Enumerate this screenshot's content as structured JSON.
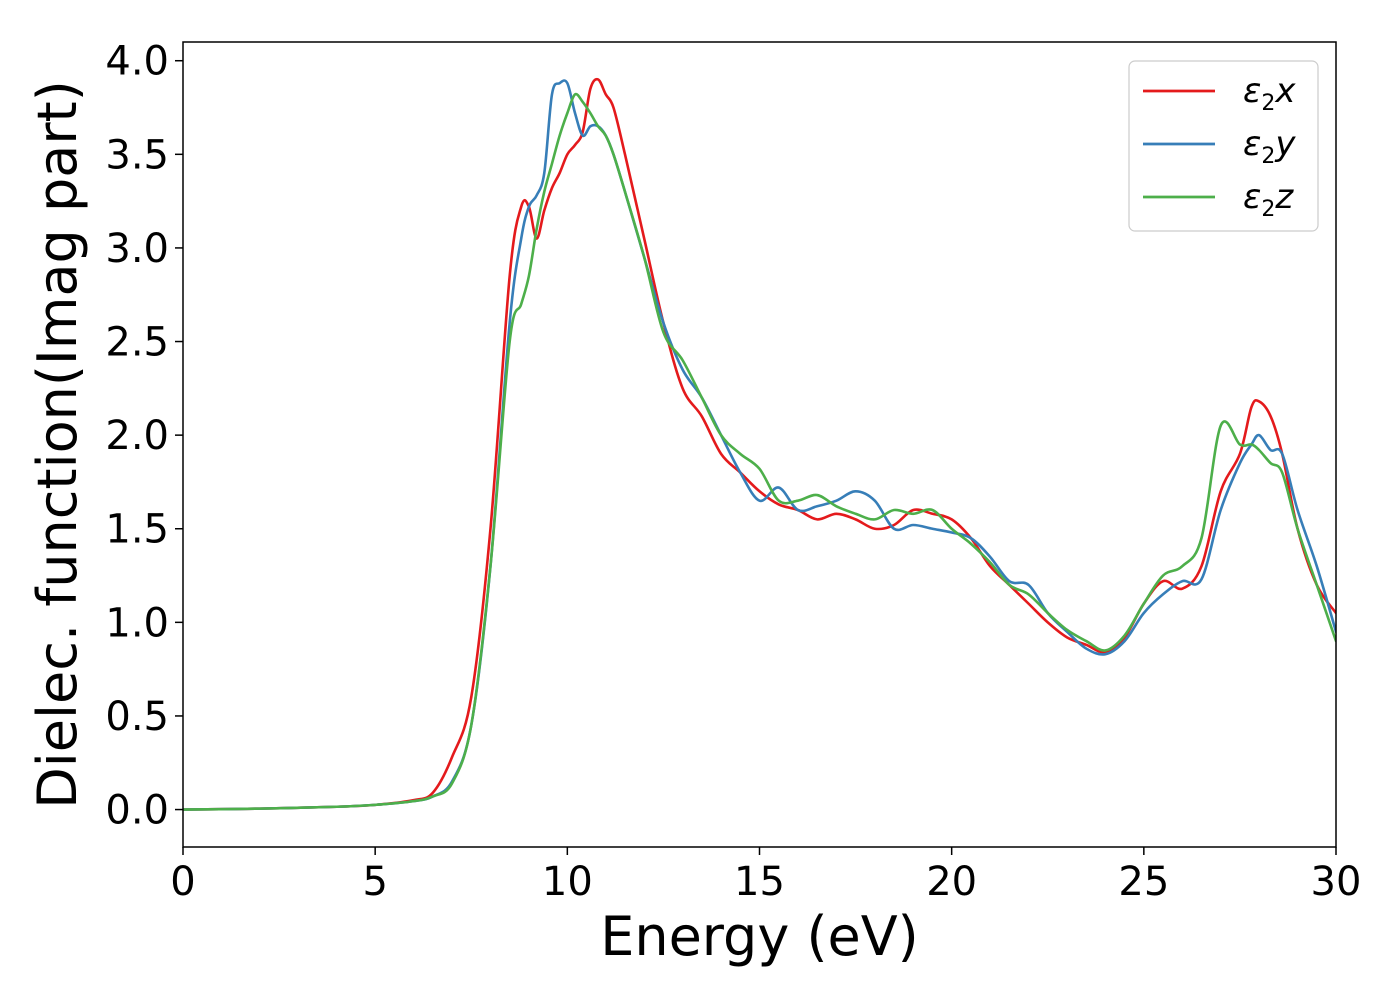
{
  "chart_data": {
    "type": "line",
    "title": "",
    "xlabel": "Energy (eV)",
    "ylabel": "Dielec. function(Imag part)",
    "xlim": [
      0,
      30
    ],
    "ylim": [
      -0.2,
      4.1
    ],
    "xticks": [
      "0",
      "5",
      "10",
      "15",
      "20",
      "25",
      "30"
    ],
    "yticks": [
      "0.0",
      "0.5",
      "1.0",
      "1.5",
      "2.0",
      "2.5",
      "3.0",
      "3.5",
      "4.0"
    ],
    "grid": false,
    "legend_position": "top-right",
    "series": [
      {
        "name": "ε2x",
        "symbol": "ε",
        "subscript": "2",
        "suffix": "x",
        "color": "#e41a1c",
        "x": [
          0,
          2,
          4,
          5,
          6,
          6.5,
          7,
          7.5,
          8,
          8.5,
          8.8,
          9,
          9.2,
          9.4,
          9.6,
          9.8,
          10,
          10.2,
          10.4,
          10.6,
          10.8,
          11,
          11.2,
          11.5,
          12,
          12.5,
          13,
          13.5,
          14,
          14.5,
          15,
          15.5,
          16,
          16.5,
          17,
          17.5,
          18,
          18.5,
          19,
          19.5,
          20,
          20.5,
          21,
          21.5,
          22,
          22.5,
          23,
          23.5,
          24,
          24.5,
          25,
          25.5,
          26,
          26.5,
          27,
          27.5,
          27.8,
          28,
          28.3,
          28.6,
          29,
          29.5,
          30
        ],
        "y": [
          0.0,
          0.005,
          0.015,
          0.025,
          0.05,
          0.09,
          0.28,
          0.6,
          1.5,
          2.85,
          3.22,
          3.22,
          3.05,
          3.2,
          3.32,
          3.4,
          3.5,
          3.55,
          3.62,
          3.85,
          3.9,
          3.82,
          3.75,
          3.5,
          3.05,
          2.6,
          2.25,
          2.1,
          1.9,
          1.8,
          1.7,
          1.63,
          1.6,
          1.55,
          1.58,
          1.55,
          1.5,
          1.52,
          1.6,
          1.58,
          1.55,
          1.45,
          1.3,
          1.2,
          1.1,
          1.0,
          0.92,
          0.88,
          0.84,
          0.92,
          1.1,
          1.22,
          1.18,
          1.3,
          1.7,
          1.9,
          2.15,
          2.18,
          2.1,
          1.9,
          1.5,
          1.2,
          1.05
        ]
      },
      {
        "name": "ε2y",
        "symbol": "ε",
        "subscript": "2",
        "suffix": "y",
        "color": "#377eb8",
        "x": [
          0,
          2,
          4,
          5,
          6,
          6.5,
          7,
          7.5,
          8,
          8.5,
          8.8,
          9,
          9.2,
          9.4,
          9.6,
          9.8,
          10,
          10.2,
          10.4,
          10.6,
          10.8,
          11,
          11.2,
          11.5,
          12,
          12.5,
          13,
          13.5,
          14,
          14.5,
          15,
          15.5,
          16,
          16.5,
          17,
          17.5,
          18,
          18.5,
          19,
          19.5,
          20,
          20.5,
          21,
          21.5,
          22,
          22.5,
          23,
          23.5,
          24,
          24.5,
          25,
          25.5,
          26,
          26.5,
          27,
          27.5,
          27.8,
          28,
          28.3,
          28.6,
          29,
          29.5,
          30
        ],
        "y": [
          0.0,
          0.005,
          0.015,
          0.025,
          0.045,
          0.07,
          0.15,
          0.45,
          1.3,
          2.6,
          3.05,
          3.22,
          3.28,
          3.4,
          3.82,
          3.88,
          3.88,
          3.72,
          3.6,
          3.65,
          3.65,
          3.6,
          3.5,
          3.3,
          2.95,
          2.6,
          2.35,
          2.2,
          2.0,
          1.8,
          1.65,
          1.72,
          1.6,
          1.62,
          1.65,
          1.7,
          1.65,
          1.5,
          1.52,
          1.5,
          1.48,
          1.45,
          1.35,
          1.22,
          1.2,
          1.05,
          0.95,
          0.86,
          0.83,
          0.9,
          1.05,
          1.15,
          1.22,
          1.23,
          1.6,
          1.85,
          1.95,
          2.0,
          1.92,
          1.9,
          1.6,
          1.3,
          0.95
        ]
      },
      {
        "name": "ε2z",
        "symbol": "ε",
        "subscript": "2",
        "suffix": "z",
        "color": "#4daf4a",
        "x": [
          0,
          2,
          4,
          5,
          6,
          6.5,
          7,
          7.5,
          8,
          8.5,
          8.8,
          9,
          9.2,
          9.4,
          9.6,
          9.8,
          10,
          10.2,
          10.4,
          10.6,
          10.8,
          11,
          11.2,
          11.5,
          12,
          12.5,
          13,
          13.5,
          14,
          14.5,
          15,
          15.5,
          16,
          16.5,
          17,
          17.5,
          18,
          18.5,
          19,
          19.5,
          20,
          20.5,
          21,
          21.5,
          22,
          22.5,
          23,
          23.5,
          24,
          24.5,
          25,
          25.5,
          26,
          26.5,
          27,
          27.5,
          27.8,
          28,
          28.3,
          28.6,
          29,
          29.5,
          30
        ],
        "y": [
          0.0,
          0.005,
          0.015,
          0.025,
          0.045,
          0.07,
          0.14,
          0.45,
          1.3,
          2.5,
          2.7,
          2.85,
          3.1,
          3.3,
          3.45,
          3.6,
          3.72,
          3.82,
          3.78,
          3.72,
          3.65,
          3.6,
          3.5,
          3.3,
          2.95,
          2.55,
          2.4,
          2.2,
          2.0,
          1.9,
          1.82,
          1.65,
          1.65,
          1.68,
          1.62,
          1.58,
          1.55,
          1.6,
          1.58,
          1.6,
          1.5,
          1.42,
          1.32,
          1.2,
          1.15,
          1.05,
          0.96,
          0.9,
          0.85,
          0.93,
          1.1,
          1.25,
          1.3,
          1.45,
          2.05,
          1.95,
          1.95,
          1.92,
          1.85,
          1.8,
          1.5,
          1.2,
          0.9
        ]
      }
    ]
  }
}
